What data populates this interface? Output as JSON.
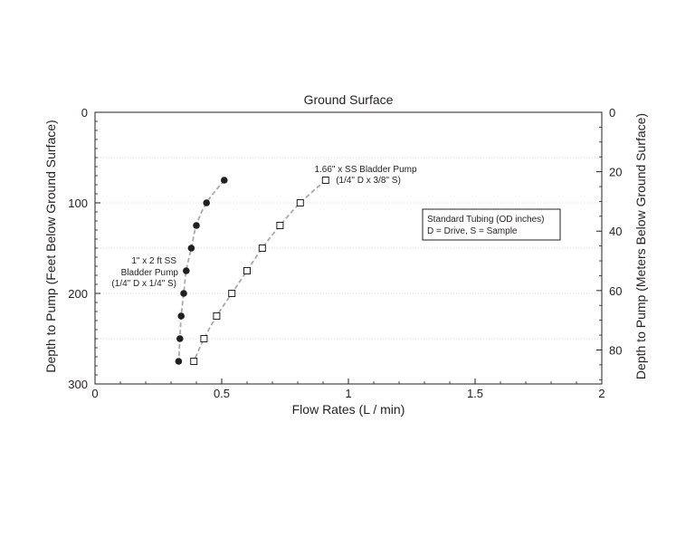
{
  "chart_data": {
    "type": "scatter",
    "title": "Ground Surface",
    "xlabel": "Flow Rates (L / min)",
    "ylabel_left": "Depth to Pump (Feet  Below Ground Surface)",
    "ylabel_right": "Depth to Pump (Meters Below Ground Surface)",
    "xlim": [
      0,
      2
    ],
    "ylim_left": [
      300,
      0
    ],
    "ylim_right_meters": [
      91.44,
      0
    ],
    "x_ticks": [
      0,
      0.5,
      1,
      1.5,
      2
    ],
    "x_tick_labels": [
      "0",
      "0.5",
      "1",
      "1.5",
      "2"
    ],
    "y_left_ticks": [
      0,
      100,
      200,
      300
    ],
    "y_left_tick_labels": [
      "0",
      "100",
      "200",
      "300"
    ],
    "y_right_ticks": [
      0,
      20,
      40,
      60,
      80
    ],
    "y_right_tick_labels": [
      "0",
      "20",
      "40",
      "60",
      "80"
    ],
    "grid": "horizontal dotted every 50 ft",
    "series": [
      {
        "marker": "filled-circle",
        "color": "#231f20",
        "line": "dashed",
        "line_color": "#a7a9ac",
        "x": [
          0.51,
          0.44,
          0.4,
          0.38,
          0.36,
          0.35,
          0.34,
          0.335,
          0.33
        ],
        "y": [
          75,
          100,
          125,
          150,
          175,
          200,
          225,
          250,
          275
        ]
      },
      {
        "marker": "open-square",
        "color": "#231f20",
        "line": "dashed",
        "line_color": "#a7a9ac",
        "x": [
          0.91,
          0.81,
          0.73,
          0.66,
          0.6,
          0.54,
          0.48,
          0.43,
          0.39
        ],
        "y": [
          75,
          100,
          125,
          150,
          175,
          200,
          225,
          250,
          275
        ]
      }
    ],
    "annotations": {
      "series1_label": [
        "1\" x 2 ft SS",
        "Bladder Pump",
        "(1/4\" D x 1/4\" S)"
      ],
      "series2_label": [
        "1.66\" x SS Bladder Pump",
        "(1/4\" D x 3/8\" S)"
      ],
      "legend_box": [
        "Standard Tubing (OD inches)",
        "D = Drive, S = Sample"
      ]
    }
  }
}
